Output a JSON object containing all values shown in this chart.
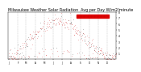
{
  "title": "Milwaukee Weather Solar Radiation  Avg per Day W/m2/minute",
  "title_fontsize": 3.5,
  "background_color": "#ffffff",
  "plot_bg_color": "#ffffff",
  "grid_color": "#bbbbbb",
  "dot_color_primary": "#cc0000",
  "dot_color_secondary": "#111111",
  "ylim": [
    0,
    800
  ],
  "yticks": [
    100,
    200,
    300,
    400,
    500,
    600,
    700,
    800
  ],
  "ytick_labels": [
    "1",
    "2",
    "3",
    "4",
    "5",
    "6",
    "7",
    "8"
  ],
  "num_points": 365,
  "legend_box_color": "#dd0000",
  "month_starts": [
    0,
    31,
    59,
    90,
    120,
    151,
    181,
    212,
    243,
    273,
    304,
    334
  ],
  "month_labels": [
    "J",
    "F",
    "M",
    "A",
    "M",
    "J",
    "J",
    "A",
    "S",
    "O",
    "N",
    "D"
  ]
}
